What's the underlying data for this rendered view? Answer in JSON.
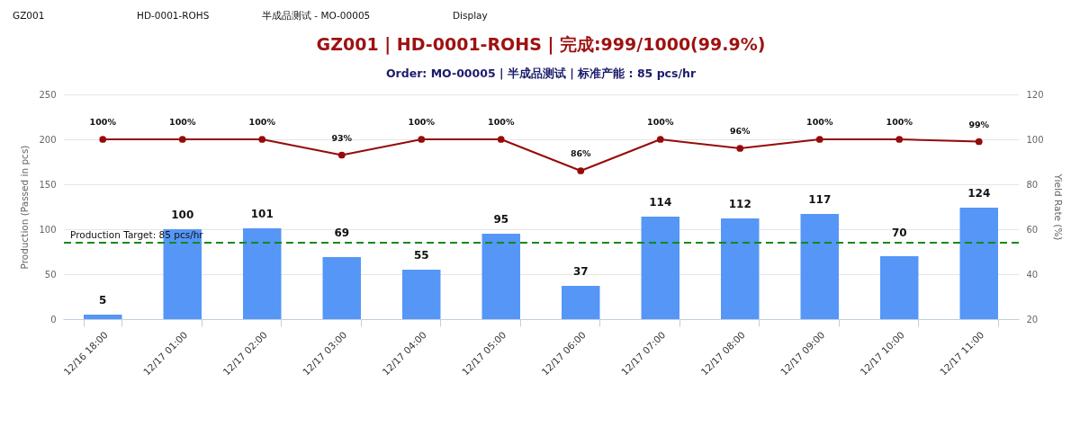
{
  "chart_data": {
    "type": "bar",
    "title": "GZ001 | HD-0001-ROHS | 完成:999/1000(99.9%)",
    "subtitle": "Order: MO-00005 | 半成品测试 | 标准产能 : 85 pcs/hr",
    "ylabel": "Production (Passed in pcs)",
    "y2label": "Yield Rate (%)",
    "categories": [
      "12/16 18:00",
      "12/17 01:00",
      "12/17 02:00",
      "12/17 03:00",
      "12/17 04:00",
      "12/17 05:00",
      "12/17 06:00",
      "12/17 07:00",
      "12/17 08:00",
      "12/17 09:00",
      "12/17 10:00",
      "12/17 11:00"
    ],
    "series": [
      {
        "color": "#5596f7",
        "values": [
          5,
          100,
          101,
          69,
          55,
          95,
          37,
          114,
          112,
          117,
          70,
          124
        ],
        "value_labels": [
          "5",
          "100",
          "101",
          "69",
          "55",
          "95",
          "37",
          "114",
          "112",
          "117",
          "70",
          "124"
        ]
      },
      {
        "type": "line",
        "axis": "y2",
        "color": "#960a0a",
        "marker": "circle",
        "values": [
          100,
          100,
          100,
          93,
          100,
          100,
          86,
          100,
          96,
          100,
          100,
          99
        ],
        "value_labels": [
          "100%",
          "100%",
          "100%",
          "93%",
          "100%",
          "100%",
          "86%",
          "100%",
          "96%",
          "100%",
          "100%",
          "99%"
        ]
      }
    ],
    "ylim": [
      0,
      250
    ],
    "yticks": [
      0,
      50,
      100,
      150,
      200,
      250
    ],
    "y2lim": [
      20,
      120
    ],
    "y2ticks": [
      20,
      40,
      60,
      80,
      100,
      120
    ],
    "ref_lines": [
      {
        "axis": "y",
        "value": 85,
        "label": "Production Target: 85 pcs/hr",
        "color": "#158a15",
        "line_style": "dashed"
      }
    ],
    "grid": "y",
    "annotations": [
      "GZ001",
      "HD-0001-ROHS",
      "半成品测试 - MO-00005",
      "Display"
    ]
  }
}
